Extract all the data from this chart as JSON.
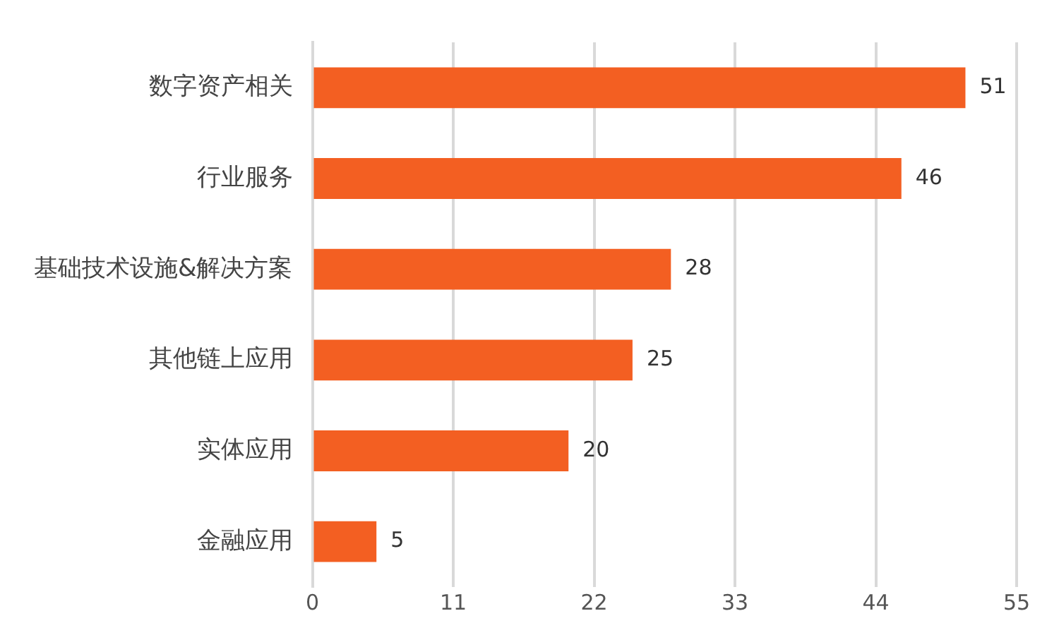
{
  "chart_data": {
    "type": "bar",
    "orientation": "horizontal",
    "categories": [
      "数字资产相关",
      "行业服务",
      "基础技术设施&解决方案",
      "其他链上应用",
      "实体应用",
      "金融应用"
    ],
    "values": [
      51,
      46,
      28,
      25,
      20,
      5
    ],
    "color": "#f35f22",
    "xlim": [
      0,
      55
    ],
    "xticks": [
      0,
      11,
      22,
      33,
      44,
      55
    ],
    "grid": "x",
    "data_labels": true
  }
}
